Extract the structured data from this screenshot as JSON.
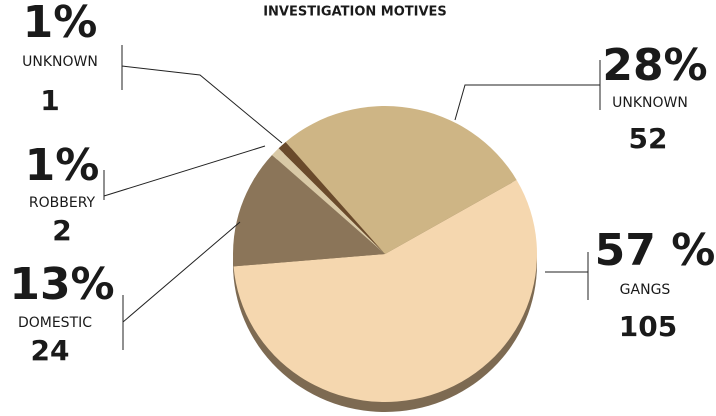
{
  "chart_data": {
    "type": "pie",
    "title": "INVESTIGATION MOTIVES",
    "categories": [
      "GANGS",
      "DOMESTIC",
      "ROBBERY",
      "UNKNOWN",
      "UNKNOWN"
    ],
    "values": [
      57,
      13,
      1,
      1,
      28
    ],
    "value_labels": [
      "57 %",
      "13%",
      "1%",
      "1%",
      "28%"
    ],
    "counts": [
      105,
      24,
      2,
      1,
      52
    ],
    "colors": [
      "#f5d7af",
      "#8b7559",
      "#d9c9a6",
      "#6a4a2b",
      "#ceb585"
    ]
  }
}
